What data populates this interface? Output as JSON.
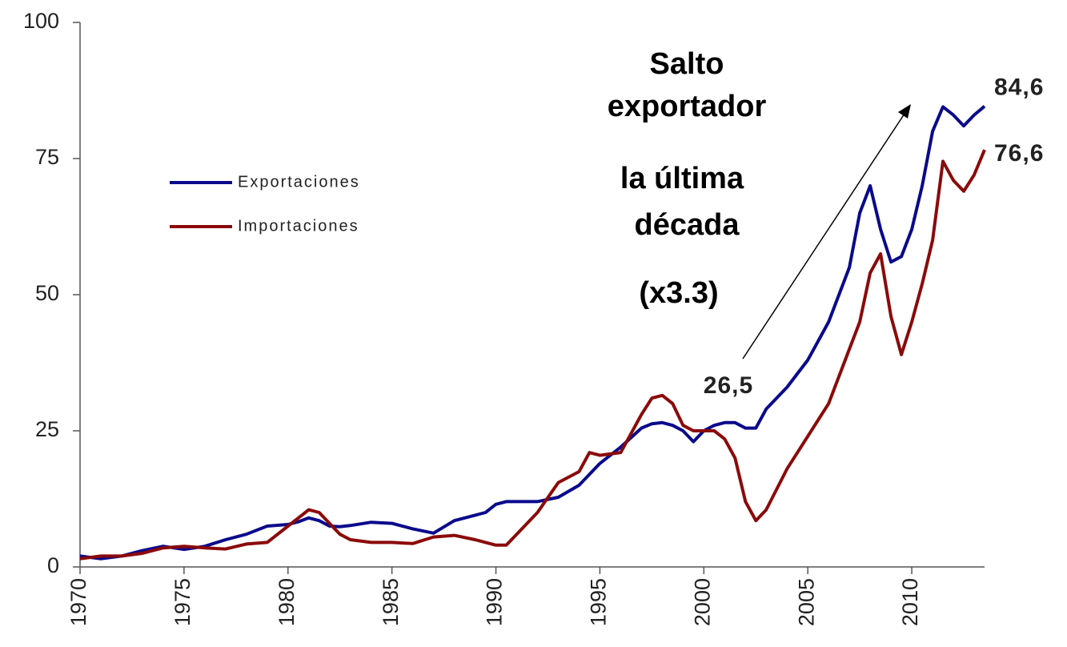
{
  "chart_data": {
    "type": "line",
    "annotations": [
      "Salto",
      "exportador",
      "la última",
      "década",
      "(x3.3)",
      "26,5"
    ],
    "x": [
      1970,
      1971,
      1972,
      1973,
      1974,
      1975,
      1976,
      1977,
      1978,
      1979,
      1980,
      1980.5,
      1981,
      1981.5,
      1982,
      1982.5,
      1983,
      1984,
      1985,
      1986,
      1987,
      1988,
      1989,
      1989.5,
      1990,
      1990.5,
      1991,
      1992,
      1993,
      1994,
      1994.5,
      1995,
      1996,
      1997,
      1997.5,
      1998,
      1998.5,
      1999,
      1999.5,
      2000,
      2000.5,
      2001,
      2001.5,
      2002,
      2002.5,
      2003,
      2004,
      2005,
      2006,
      2007,
      2007.5,
      2008,
      2008.5,
      2009,
      2009.5,
      2010,
      2010.5,
      2011,
      2011.5,
      2012,
      2012.5,
      2013,
      2013.5
    ],
    "series": [
      {
        "name": "Exportaciones",
        "color": "#0a0a8c",
        "end_label": "84,6",
        "values": [
          2,
          1.5,
          2,
          3,
          3.8,
          3.2,
          3.8,
          5,
          6,
          7.5,
          7.8,
          8.3,
          9,
          8.5,
          7.5,
          7.4,
          7.6,
          8.2,
          8,
          7,
          6.2,
          8.5,
          9.5,
          10,
          11.5,
          12,
          12,
          12,
          12.8,
          15,
          17,
          19,
          22,
          25.5,
          26.3,
          26.5,
          26,
          25,
          23,
          25,
          26,
          26.5,
          26.5,
          25.5,
          25.5,
          29,
          33,
          38,
          45,
          55,
          65,
          70,
          62,
          56,
          57,
          62,
          70,
          80,
          84.5,
          83,
          81,
          83,
          84.6
        ]
      },
      {
        "name": "Importaciones",
        "color": "#8b0a0a",
        "end_label": "76,6",
        "values": [
          1.5,
          2,
          2,
          2.5,
          3.5,
          3.8,
          3.5,
          3.3,
          4.2,
          4.5,
          7.5,
          9,
          10.5,
          10,
          8,
          6,
          5,
          4.5,
          4.5,
          4.3,
          5.5,
          5.8,
          5,
          4.5,
          4,
          4,
          6,
          10,
          15.5,
          17.5,
          21,
          20.5,
          21,
          28,
          31,
          31.5,
          30,
          26,
          25,
          25,
          25,
          23.5,
          20,
          12,
          8.5,
          10.5,
          18,
          24,
          30,
          40,
          45,
          54,
          57.5,
          46,
          39,
          45,
          52,
          60,
          74.5,
          71,
          69,
          72,
          76.6
        ]
      }
    ],
    "xlim": [
      1970,
      2013.5
    ],
    "xticks": [
      1970,
      1975,
      1980,
      1985,
      1990,
      1995,
      2000,
      2005,
      2010
    ],
    "ylim": [
      0,
      100
    ],
    "yticks": [
      0,
      25,
      50,
      75,
      100
    ],
    "grid": false
  }
}
